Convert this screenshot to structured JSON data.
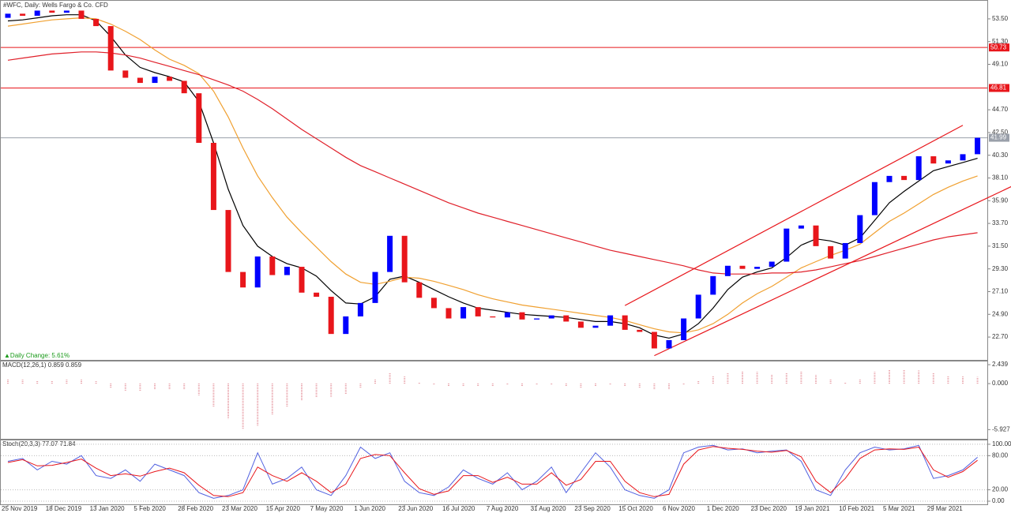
{
  "chart_data": [
    {
      "type": "candlestick",
      "title": "#WFC, Daily:  Wells Fargo & Co. CFD",
      "annotation": "▲Daily Change: 5.61%",
      "categories": [
        "25 Nov 2019",
        null,
        null,
        "18 Dec 2019",
        null,
        null,
        "13 Jan 2020",
        null,
        null,
        "5 Feb 2020",
        null,
        null,
        "28 Feb 2020",
        null,
        null,
        "23 Mar 2020",
        null,
        null,
        "15 Apr 2020",
        null,
        null,
        "7 May 2020",
        null,
        null,
        "1 Jun 2020",
        null,
        null,
        "23 Jun 2020",
        null,
        null,
        "16 Jul 2020",
        null,
        null,
        "7 Aug 2020",
        null,
        null,
        "31 Aug 2020",
        null,
        null,
        "23 Sep 2020",
        null,
        null,
        "15 Oct 2020",
        null,
        null,
        "6 Nov 2020",
        null,
        null,
        "1 Dec 2020",
        null,
        null,
        "23 Dec 2020",
        null,
        null,
        "19 Jan 2021",
        null,
        null,
        "10 Feb 2021",
        null,
        null,
        "5 Mar 2021",
        null,
        null,
        "29 Mar 2021",
        null,
        null,
        null
      ],
      "open": [
        53.6,
        54.0,
        53.8,
        54.3,
        54.1,
        54.3,
        53.5,
        52.8,
        48.5,
        47.8,
        47.3,
        47.9,
        47.5,
        46.3,
        41.5,
        35.0,
        29.0,
        27.5,
        30.5,
        28.7,
        29.5,
        27.0,
        26.6,
        23.0,
        24.7,
        26.0,
        29.0,
        32.5,
        28.0,
        26.5,
        25.5,
        24.5,
        25.6,
        24.7,
        24.6,
        25.1,
        24.4,
        24.5,
        24.8,
        24.2,
        23.6,
        23.8,
        24.8,
        23.4,
        23.2,
        21.6,
        22.4,
        24.5,
        26.8,
        28.6,
        29.6,
        29.3,
        29.5,
        30.0,
        33.2,
        33.5,
        31.5,
        30.3,
        31.8,
        34.5,
        37.7,
        38.3,
        37.9,
        40.2,
        39.5,
        39.8,
        40.4
      ],
      "close": [
        54.0,
        53.8,
        54.3,
        54.1,
        54.3,
        53.5,
        52.8,
        48.5,
        47.8,
        47.3,
        47.9,
        47.5,
        46.3,
        41.5,
        35.0,
        29.0,
        27.5,
        30.5,
        28.7,
        29.5,
        27.0,
        26.6,
        23.0,
        24.7,
        26.0,
        29.0,
        32.5,
        28.0,
        26.5,
        25.5,
        24.5,
        25.6,
        24.7,
        24.6,
        25.1,
        24.4,
        24.5,
        24.8,
        24.2,
        23.6,
        23.8,
        24.8,
        23.4,
        23.2,
        21.6,
        22.4,
        24.5,
        26.8,
        28.6,
        29.6,
        29.3,
        29.5,
        30.0,
        33.2,
        33.5,
        31.5,
        30.3,
        31.8,
        34.5,
        37.7,
        38.3,
        37.9,
        40.2,
        39.5,
        39.8,
        40.4,
        41.99
      ],
      "up_color": "#0000ff",
      "down_color": "#e8161b",
      "series": [
        {
          "color": "#000000",
          "values": [
            53.3,
            53.4,
            53.6,
            53.8,
            53.9,
            53.9,
            53.3,
            51.8,
            50.0,
            48.8,
            48.3,
            47.9,
            47.4,
            45.5,
            41.5,
            37.0,
            33.5,
            31.5,
            30.5,
            29.8,
            29.4,
            28.6,
            27.2,
            26.0,
            25.9,
            26.6,
            28.3,
            28.6,
            28.0,
            27.3,
            26.6,
            26.0,
            25.5,
            25.3,
            25.1,
            24.9,
            24.8,
            24.7,
            24.6,
            24.4,
            24.2,
            24.2,
            24.0,
            23.6,
            22.9,
            22.6,
            23.0,
            24.0,
            25.5,
            27.3,
            28.5,
            29.0,
            29.4,
            30.4,
            31.6,
            32.2,
            32.0,
            31.6,
            32.3,
            34.0,
            35.7,
            36.8,
            37.8,
            38.8,
            39.2,
            39.6,
            40.0
          ]
        },
        {
          "color": "#f0a030",
          "values": [
            52.8,
            53.0,
            53.2,
            53.4,
            53.5,
            53.6,
            53.5,
            53.0,
            52.3,
            51.5,
            50.5,
            49.6,
            49.0,
            48.2,
            46.5,
            44.0,
            41.0,
            38.3,
            36.2,
            34.3,
            32.8,
            31.4,
            30.0,
            28.8,
            28.0,
            27.8,
            28.1,
            28.5,
            28.4,
            28.1,
            27.7,
            27.3,
            26.8,
            26.4,
            26.1,
            25.8,
            25.6,
            25.4,
            25.2,
            25.0,
            24.8,
            24.6,
            24.3,
            23.9,
            23.5,
            23.2,
            23.1,
            23.4,
            24.0,
            24.9,
            26.0,
            26.9,
            27.6,
            28.5,
            29.4,
            30.0,
            30.6,
            31.1,
            31.7,
            32.8,
            33.9,
            34.7,
            35.6,
            36.5,
            37.2,
            37.8,
            38.3
          ]
        },
        {
          "color": "#e0202a",
          "values": [
            49.5,
            49.7,
            49.9,
            50.1,
            50.2,
            50.3,
            50.3,
            50.2,
            50.0,
            49.7,
            49.3,
            48.9,
            48.5,
            48.1,
            47.6,
            47.1,
            46.5,
            45.7,
            44.8,
            43.8,
            42.8,
            41.9,
            41.0,
            40.1,
            39.3,
            38.7,
            38.1,
            37.5,
            36.9,
            36.3,
            35.7,
            35.2,
            34.7,
            34.3,
            33.9,
            33.5,
            33.1,
            32.7,
            32.3,
            31.9,
            31.5,
            31.1,
            30.8,
            30.5,
            30.2,
            29.9,
            29.6,
            29.2,
            28.9,
            28.8,
            28.8,
            28.8,
            28.9,
            28.9,
            29.0,
            29.2,
            29.5,
            29.8,
            30.1,
            30.5,
            30.9,
            31.3,
            31.7,
            32.1,
            32.4,
            32.6,
            32.8
          ]
        }
      ],
      "channel_upper": [
        25.75,
        43.2
      ],
      "channel_lower": [
        20.9,
        37.4
      ],
      "channel_color": "#e8161b",
      "levels": [
        50.73,
        46.81,
        41.99
      ],
      "level_colors": [
        "#e8161b",
        "#e8161b",
        "#9aa0aa"
      ],
      "ylim": [
        20.49,
        55.25
      ],
      "yticks": [
        {
          "value": 53.5,
          "label": "53.50"
        },
        {
          "value": 51.3,
          "label": "51.30"
        },
        {
          "value": 49.1,
          "label": "49.10"
        },
        {
          "value": 44.7,
          "label": "44.70"
        },
        {
          "value": 42.5,
          "label": "42.50"
        },
        {
          "value": 40.3,
          "label": "40.30"
        },
        {
          "value": 38.1,
          "label": "38.10"
        },
        {
          "value": 35.9,
          "label": "35.90"
        },
        {
          "value": 33.7,
          "label": "33.70"
        },
        {
          "value": 31.5,
          "label": "31.50"
        },
        {
          "value": 29.3,
          "label": "29.30"
        },
        {
          "value": 27.1,
          "label": "27.10"
        },
        {
          "value": 24.9,
          "label": "24.90"
        },
        {
          "value": 22.7,
          "label": "22.70"
        }
      ]
    },
    {
      "type": "macd",
      "title": "MACD(12,26,1) 0.859 0.859",
      "values": [
        0.6,
        0.5,
        0.4,
        0.4,
        0.5,
        0.5,
        0.3,
        -0.5,
        -0.9,
        -1.0,
        -0.8,
        -0.8,
        -0.8,
        -1.5,
        -3.0,
        -4.5,
        -5.9,
        -5.5,
        -4.0,
        -3.0,
        -2.2,
        -1.8,
        -1.7,
        -1.4,
        -0.6,
        0.5,
        1.4,
        0.9,
        0.2,
        -0.2,
        -0.4,
        -0.3,
        -0.4,
        -0.3,
        -0.2,
        -0.3,
        -0.2,
        -0.1,
        -0.3,
        -0.5,
        -0.4,
        -0.2,
        -0.4,
        -0.6,
        -0.8,
        -0.7,
        -0.2,
        0.4,
        1.0,
        1.4,
        1.6,
        1.5,
        1.2,
        1.4,
        1.6,
        1.1,
        0.6,
        0.2,
        0.6,
        1.5,
        1.8,
        1.8,
        1.7,
        1.4,
        1.0,
        0.9,
        0.859
      ],
      "color": "#e8a0a8",
      "ylim": [
        -7.11,
        2.85
      ],
      "yticks": [
        2.439,
        {
          "value": 0,
          "label": "0.000"
        },
        -5.927
      ]
    },
    {
      "type": "line",
      "title": "Stoch(20,3,3) 77.07 71.84",
      "series": [
        {
          "color": "#5060e0",
          "values": [
            70,
            75,
            55,
            70,
            65,
            80,
            45,
            40,
            55,
            35,
            65,
            55,
            45,
            15,
            5,
            10,
            20,
            85,
            30,
            40,
            60,
            20,
            10,
            45,
            95,
            75,
            85,
            35,
            15,
            10,
            25,
            55,
            40,
            30,
            50,
            20,
            35,
            60,
            15,
            50,
            85,
            60,
            20,
            10,
            5,
            20,
            85,
            95,
            98,
            90,
            92,
            85,
            88,
            90,
            70,
            20,
            10,
            55,
            85,
            95,
            90,
            92,
            98,
            40,
            45,
            55,
            77.07
          ]
        },
        {
          "color": "#e8161b",
          "values": [
            68,
            73,
            62,
            63,
            68,
            74,
            58,
            45,
            48,
            44,
            52,
            58,
            50,
            28,
            10,
            8,
            15,
            60,
            45,
            35,
            50,
            35,
            15,
            30,
            75,
            82,
            80,
            50,
            22,
            12,
            18,
            45,
            45,
            33,
            42,
            30,
            30,
            50,
            28,
            38,
            70,
            70,
            35,
            15,
            8,
            12,
            65,
            90,
            96,
            93,
            91,
            88,
            86,
            89,
            78,
            35,
            15,
            40,
            75,
            90,
            92,
            91,
            95,
            55,
            42,
            52,
            71.84
          ]
        }
      ],
      "ylim": [
        -5.5,
        106.8
      ],
      "yticks": [
        {
          "value": 100,
          "label": "100.00"
        },
        {
          "value": 80,
          "label": "80.00"
        },
        {
          "value": 20,
          "label": "20.00"
        },
        {
          "value": 0,
          "label": "0.00"
        }
      ]
    }
  ]
}
